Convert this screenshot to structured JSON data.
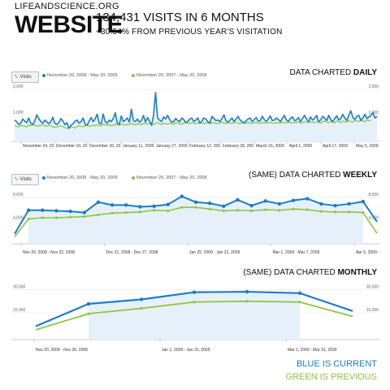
{
  "header": {
    "site": "LIFEANDSCIENCE.ORG",
    "title": "WEBSITE",
    "headline": "134,431 VISITS IN 6 MONTHS",
    "subline": "+30.54% FROM PREVIOUS YEAR'S VISITATION"
  },
  "colors": {
    "current": "#1a7ec8",
    "previous": "#8cc63f",
    "fill": "#e6f0fa"
  },
  "legend": {
    "metric": "Visits",
    "current": "November 20, 2008 - May 20, 2009",
    "previous": "November 20, 2007 - May 20, 2008"
  },
  "footer": {
    "blue": "BLUE IS CURRENT",
    "green": "GREEN IS PREVIOUS"
  },
  "panels": {
    "daily": {
      "prefix": "DATA CHARTED ",
      "bold": "DAILY"
    },
    "weekly": {
      "prefix": "(SAME) DATA CHARTED ",
      "bold": "WEEKLY"
    },
    "monthly": {
      "prefix": "(SAME) DATA CHARTED ",
      "bold": "MONTHLY"
    }
  },
  "chart_data": [
    {
      "type": "line",
      "granularity": "daily",
      "ylim": [
        0,
        2000
      ],
      "ytick_labels": [
        "2,000",
        "1,000"
      ],
      "xtick_labels": [
        "November 24, 20",
        "December 10, 20",
        "December 26, 20",
        "January 11, 2009",
        "January 27, 2009",
        "February 12, 200",
        "February 28, 200",
        "March 16, 2009",
        "April 1, 2009",
        "April 17, 2009",
        "May 5, 2009"
      ],
      "series": [
        {
          "values": [
            820,
            760,
            650,
            700,
            860,
            780,
            720,
            900,
            700,
            640,
            780,
            1020,
            880,
            760,
            700,
            820,
            750,
            680,
            760,
            930,
            700,
            650,
            720,
            880,
            780,
            640,
            720,
            500,
            620,
            680,
            780,
            820,
            700,
            760,
            900,
            660,
            620,
            780,
            920,
            760,
            860,
            1050,
            700,
            680,
            1050,
            760,
            700,
            820,
            760,
            880,
            1100,
            700,
            660,
            980,
            760,
            820,
            900,
            740,
            1240,
            800,
            760,
            860,
            740,
            800,
            1000,
            740,
            920,
            780,
            620,
            1000,
            1880,
            900,
            820,
            760,
            940,
            860,
            1000,
            840,
            740,
            760,
            880,
            800,
            760,
            900,
            840,
            720,
            760,
            860,
            900,
            760,
            820,
            900,
            700,
            780,
            900,
            860,
            760,
            700,
            960,
            880,
            800,
            820,
            760,
            880,
            1020,
            780,
            740,
            820,
            900,
            760,
            860,
            960,
            820,
            760,
            700,
            800,
            860,
            900,
            760,
            840,
            920,
            780,
            800,
            960,
            840,
            760,
            860,
            980,
            800,
            820,
            900,
            840,
            760,
            880,
            1000,
            820,
            760,
            880,
            940,
            800,
            820,
            920,
            760,
            880,
            1000,
            860,
            760,
            940,
            820,
            880,
            1000,
            760,
            820,
            960,
            900,
            800,
            1000,
            840,
            760,
            880,
            980,
            820,
            880,
            1040,
            900,
            800,
            1000,
            1180,
            920,
            840,
            960,
            1000,
            800,
            900,
            1040,
            880,
            940,
            1000,
            1100,
            900,
            960
          ]
        },
        {
          "values": [
            600,
            580,
            560,
            620,
            600,
            580,
            560,
            620,
            600,
            640,
            620,
            580,
            600,
            620,
            640,
            600,
            580,
            620,
            600,
            560,
            540,
            560,
            580,
            600,
            560,
            520,
            500,
            520,
            560,
            540,
            520,
            560,
            600,
            580,
            560,
            600,
            620,
            580,
            600,
            620,
            600,
            640,
            620,
            600,
            660,
            640,
            620,
            640,
            600,
            620,
            660,
            640,
            620,
            680,
            640,
            620,
            660,
            640,
            700,
            660,
            640,
            680,
            660,
            640,
            700,
            680,
            660,
            700,
            660,
            640,
            700,
            720,
            680,
            660,
            700,
            680,
            660,
            700,
            680,
            660,
            700,
            720,
            680,
            660,
            700,
            720,
            700,
            680,
            720,
            700,
            680,
            700,
            720,
            700,
            680,
            720,
            700,
            690,
            700,
            720,
            700,
            680,
            720,
            740,
            700,
            680,
            720,
            700,
            690,
            720,
            740,
            700,
            680,
            720,
            710,
            700,
            730,
            700,
            690,
            720,
            740,
            700,
            700,
            730,
            710,
            700,
            720,
            740,
            700,
            700,
            730,
            710,
            700,
            740,
            720,
            700,
            740,
            720,
            700,
            740,
            720,
            760,
            700,
            720,
            760,
            740,
            720,
            760,
            740,
            720,
            760,
            740,
            700,
            760,
            780,
            740,
            720,
            760,
            740,
            720,
            780,
            760,
            720,
            780,
            760,
            740,
            800,
            760,
            740,
            800,
            780,
            760,
            820,
            780,
            760,
            820,
            800,
            780
          ]
        }
      ]
    },
    {
      "type": "line",
      "granularity": "weekly",
      "ylim": [
        0,
        9000
      ],
      "ytick_labels": [
        "8,000",
        "4,000"
      ],
      "xtick_labels": [
        "Nov 20, 2008 - Nov 22, 2008",
        "Dec 21, 2008 - Dec 27, 2008",
        "Jan 25, 2009 - Jan 31, 2009",
        "Mar 1, 2009 - Mar 7, 2009",
        "Apr 5, 2009 - Apr 11, 2009"
      ],
      "series": [
        {
          "values": [
            1700,
            5800,
            5800,
            5700,
            5600,
            5400,
            7200,
            6700,
            6700,
            6400,
            6500,
            6800,
            8200,
            7200,
            7000,
            6500,
            7600,
            6600,
            7400,
            6900,
            7500,
            7800,
            6900,
            6600,
            6900,
            7300,
            3800
          ]
        },
        {
          "values": [
            1200,
            4300,
            4500,
            4500,
            4600,
            4700,
            5000,
            5300,
            5400,
            5500,
            5800,
            5700,
            6300,
            6300,
            6000,
            5700,
            5800,
            5700,
            5900,
            5800,
            6000,
            5900,
            5600,
            5500,
            5500,
            5400,
            1800
          ]
        }
      ]
    },
    {
      "type": "line",
      "granularity": "monthly",
      "ylim": [
        0,
        30000
      ],
      "ytick_labels": [
        "30,000",
        "15,000"
      ],
      "xtick_labels": [
        "Nov 20, 2008 - Nov 30, 2008",
        "Jan 1, 2009 - Jan 31, 2009",
        "Mar 1, 2009 - Mar 31, 2009"
      ],
      "series": [
        {
          "values": [
            7500,
            20000,
            22500,
            26500,
            26800,
            26000,
            16000
          ]
        },
        {
          "values": [
            5500,
            14500,
            17500,
            21000,
            21500,
            21000,
            13000
          ]
        }
      ]
    }
  ]
}
